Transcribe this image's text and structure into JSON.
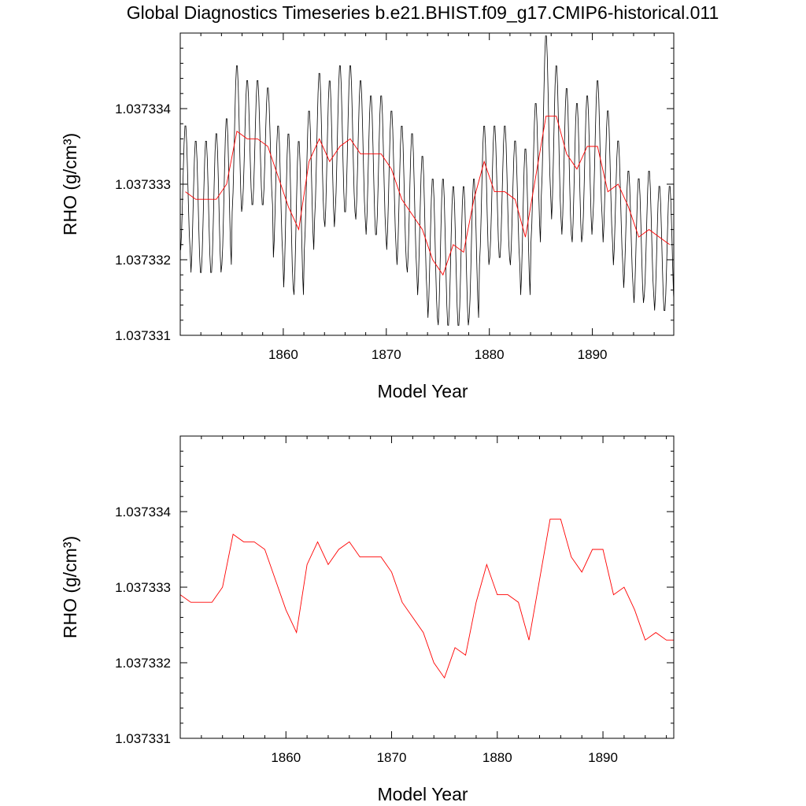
{
  "title": "Global Diagnostics Timeseries b.e21.BHIST.f09_g17.CMIP6-historical.011",
  "chart_data": [
    {
      "type": "line",
      "xlabel": "Model Year",
      "ylabel": "RHO (g/cm³)",
      "xlim": [
        1850,
        1897.9
      ],
      "ylim": [
        1.037331,
        1.037335
      ],
      "xticks": [
        1860,
        1870,
        1880,
        1890
      ],
      "yticks": [
        1.037331,
        1.037332,
        1.037333,
        1.037334
      ],
      "ytick_labels": [
        "1.037331",
        "1.037332",
        "1.037333",
        "1.037334"
      ],
      "grid": false,
      "series": [
        {
          "color": "#000000",
          "description": "monthly values (one sinusoidal seasonal cycle per year, peak near mid-year, trough near year start)",
          "annual_peak": [
            1.0373338,
            1.0373336,
            1.0373336,
            1.0373337,
            1.0373339,
            1.0373346,
            1.0373344,
            1.0373344,
            1.0373343,
            1.0373338,
            1.0373337,
            1.0373336,
            1.037334,
            1.0373345,
            1.0373344,
            1.0373346,
            1.0373346,
            1.0373344,
            1.0373342,
            1.0373342,
            1.037334,
            1.0373338,
            1.0373337,
            1.0373334,
            1.0373331,
            1.0373331,
            1.037333,
            1.037333,
            1.0373331,
            1.0373338,
            1.0373338,
            1.0373338,
            1.0373336,
            1.0373335,
            1.0373341,
            1.037335,
            1.0373346,
            1.0373343,
            1.0373341,
            1.0373342,
            1.0373344,
            1.037334,
            1.0373336,
            1.0373332,
            1.0373331,
            1.0373332,
            1.037333,
            1.037333
          ],
          "annual_trough": [
            1.0373321,
            1.0373318,
            1.0373318,
            1.0373318,
            1.0373319,
            1.0373326,
            1.0373327,
            1.0373327,
            1.0373327,
            1.037332,
            1.0373316,
            1.0373315,
            1.0373321,
            1.0373325,
            1.0373324,
            1.0373326,
            1.0373326,
            1.0373325,
            1.0373323,
            1.0373323,
            1.0373321,
            1.0373319,
            1.0373318,
            1.0373315,
            1.0373312,
            1.0373311,
            1.0373311,
            1.0373311,
            1.0373312,
            1.0373319,
            1.037332,
            1.037332,
            1.0373319,
            1.0373315,
            1.0373322,
            1.0373328,
            1.0373325,
            1.0373323,
            1.0373322,
            1.0373323,
            1.0373325,
            1.0373322,
            1.0373319,
            1.0373316,
            1.0373314,
            1.0373315,
            1.0373313,
            1.0373313
          ]
        },
        {
          "color": "#ff0000",
          "description": "annual mean",
          "x": [
            1850.5,
            1851.5,
            1852.5,
            1853.5,
            1854.5,
            1855.5,
            1856.5,
            1857.5,
            1858.5,
            1859.5,
            1860.5,
            1861.5,
            1862.5,
            1863.5,
            1864.5,
            1865.5,
            1866.5,
            1867.5,
            1868.5,
            1869.5,
            1870.5,
            1871.5,
            1872.5,
            1873.5,
            1874.5,
            1875.5,
            1876.5,
            1877.5,
            1878.5,
            1879.5,
            1880.5,
            1881.5,
            1882.5,
            1883.5,
            1884.5,
            1885.5,
            1886.5,
            1887.5,
            1888.5,
            1889.5,
            1890.5,
            1891.5,
            1892.5,
            1893.5,
            1894.5,
            1895.5,
            1896.5,
            1897.5
          ],
          "values": [
            1.0373329,
            1.0373328,
            1.0373328,
            1.0373328,
            1.037333,
            1.0373337,
            1.0373336,
            1.0373336,
            1.0373335,
            1.0373331,
            1.0373327,
            1.0373324,
            1.0373333,
            1.0373336,
            1.0373333,
            1.0373335,
            1.0373336,
            1.0373334,
            1.0373334,
            1.0373334,
            1.0373332,
            1.0373328,
            1.0373326,
            1.0373324,
            1.037332,
            1.0373318,
            1.0373322,
            1.0373321,
            1.0373328,
            1.0373333,
            1.0373329,
            1.0373329,
            1.0373328,
            1.0373323,
            1.0373331,
            1.0373339,
            1.0373339,
            1.0373334,
            1.0373332,
            1.0373335,
            1.0373335,
            1.0373329,
            1.037333,
            1.0373327,
            1.0373323,
            1.0373324,
            1.0373323,
            1.0373322
          ]
        }
      ]
    },
    {
      "type": "line",
      "xlabel": "Model Year",
      "ylabel": "RHO (g/cm³)",
      "xlim": [
        1850,
        1896.7
      ],
      "ylim": [
        1.037331,
        1.037335
      ],
      "xticks": [
        1860,
        1870,
        1880,
        1890
      ],
      "yticks": [
        1.037331,
        1.037332,
        1.037333,
        1.037334
      ],
      "ytick_labels": [
        "1.037331",
        "1.037332",
        "1.037333",
        "1.037334"
      ],
      "grid": false,
      "series": [
        {
          "color": "#ff0000",
          "description": "annual mean",
          "x": [
            1850,
            1851,
            1852,
            1853,
            1854,
            1855,
            1856,
            1857,
            1858,
            1859,
            1860,
            1861,
            1862,
            1863,
            1864,
            1865,
            1866,
            1867,
            1868,
            1869,
            1870,
            1871,
            1872,
            1873,
            1874,
            1875,
            1876,
            1877,
            1878,
            1879,
            1880,
            1881,
            1882,
            1883,
            1884,
            1885,
            1886,
            1887,
            1888,
            1889,
            1890,
            1891,
            1892,
            1893,
            1894,
            1895,
            1896,
            1896.7
          ],
          "values": [
            1.0373329,
            1.0373328,
            1.0373328,
            1.0373328,
            1.037333,
            1.0373337,
            1.0373336,
            1.0373336,
            1.0373335,
            1.0373331,
            1.0373327,
            1.0373324,
            1.0373333,
            1.0373336,
            1.0373333,
            1.0373335,
            1.0373336,
            1.0373334,
            1.0373334,
            1.0373334,
            1.0373332,
            1.0373328,
            1.0373326,
            1.0373324,
            1.037332,
            1.0373318,
            1.0373322,
            1.0373321,
            1.0373328,
            1.0373333,
            1.0373329,
            1.0373329,
            1.0373328,
            1.0373323,
            1.0373331,
            1.0373339,
            1.0373339,
            1.0373334,
            1.0373332,
            1.0373335,
            1.0373335,
            1.0373329,
            1.037333,
            1.0373327,
            1.0373323,
            1.0373324,
            1.0373323,
            1.0373323
          ]
        }
      ]
    }
  ]
}
